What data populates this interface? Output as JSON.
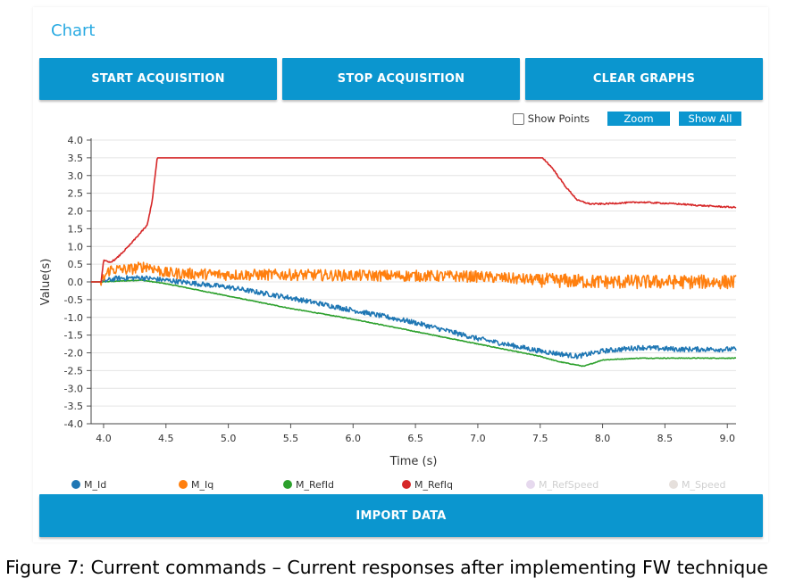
{
  "panel": {
    "title": "Chart"
  },
  "buttons": {
    "start": "START ACQUISITION",
    "stop": "STOP ACQUISITION",
    "clear": "CLEAR GRAPHS",
    "import": "IMPORT DATA"
  },
  "options": {
    "show_points": "Show Points",
    "zoom": "Zoom",
    "show_all": "Show All"
  },
  "caption": "Figure 7: Current commands – Current responses after implementing FW technique",
  "colors": {
    "accent": "#0b96cf",
    "title": "#29aae2",
    "M_Id": "#1f77b4",
    "M_Iq": "#ff7f0e",
    "M_RefId": "#2ca02c",
    "M_RefIq": "#d62728",
    "M_RefSpeed": "#e6d9ee",
    "M_Speed": "#e6e0dc"
  },
  "chart_data": {
    "type": "line",
    "xlabel": "Time (s)",
    "ylabel": "Value(s)",
    "xlim": [
      3.9,
      9.07
    ],
    "ylim": [
      -4.0,
      4.0
    ],
    "xticks": [
      "4.0",
      "4.5",
      "5.0",
      "5.5",
      "6.0",
      "6.5",
      "7.0",
      "7.5",
      "8.0",
      "8.5",
      "9.0"
    ],
    "yticks": [
      "4.0",
      "3.5",
      "3.0",
      "2.5",
      "2.0",
      "1.5",
      "1.0",
      "0.5",
      "0.0",
      "-0.5",
      "-1.0",
      "-1.5",
      "-2.0",
      "-2.5",
      "-3.0",
      "-3.5",
      "-4.0"
    ],
    "grid": true,
    "legend_position": "bottom",
    "series": [
      {
        "name": "M_Id",
        "x": [
          3.9,
          3.98,
          4.1,
          4.3,
          4.5,
          5.0,
          5.5,
          6.0,
          6.5,
          7.0,
          7.5,
          7.8,
          8.0,
          8.3,
          8.6,
          9.07
        ],
        "y": [
          0.0,
          0.0,
          0.1,
          0.12,
          0.05,
          -0.15,
          -0.45,
          -0.8,
          -1.15,
          -1.6,
          -1.95,
          -2.1,
          -1.95,
          -1.85,
          -1.9,
          -1.9
        ]
      },
      {
        "name": "M_Iq",
        "x": [
          3.9,
          3.98,
          4.05,
          4.2,
          4.35,
          4.5,
          5.0,
          5.5,
          6.0,
          6.5,
          7.0,
          7.5,
          8.0,
          8.5,
          9.07
        ],
        "y": [
          0.0,
          0.0,
          0.35,
          0.35,
          0.45,
          0.25,
          0.2,
          0.2,
          0.18,
          0.17,
          0.15,
          0.05,
          0.0,
          0.0,
          0.0
        ]
      },
      {
        "name": "M_RefId",
        "x": [
          3.9,
          3.98,
          4.3,
          4.5,
          5.0,
          5.5,
          6.0,
          6.5,
          7.0,
          7.5,
          7.65,
          7.85,
          8.0,
          8.3,
          9.07
        ],
        "y": [
          0.0,
          0.0,
          0.05,
          -0.05,
          -0.4,
          -0.75,
          -1.05,
          -1.4,
          -1.75,
          -2.1,
          -2.25,
          -2.38,
          -2.2,
          -2.15,
          -2.15
        ]
      },
      {
        "name": "M_RefIq",
        "x": [
          3.9,
          3.98,
          4.0,
          4.05,
          4.1,
          4.2,
          4.35,
          4.39,
          4.43,
          7.52,
          7.6,
          7.7,
          7.8,
          7.9,
          8.0,
          8.3,
          8.6,
          8.8,
          9.07
        ],
        "y": [
          0.0,
          0.0,
          0.6,
          0.55,
          0.65,
          1.0,
          1.6,
          2.3,
          3.5,
          3.5,
          3.2,
          2.7,
          2.3,
          2.2,
          2.2,
          2.25,
          2.2,
          2.15,
          2.1
        ]
      },
      {
        "name": "M_RefSpeed",
        "x": [],
        "y": []
      },
      {
        "name": "M_Speed",
        "x": [],
        "y": []
      }
    ]
  }
}
